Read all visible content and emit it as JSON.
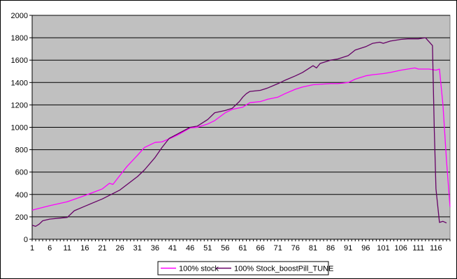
{
  "chart_data": {
    "type": "line",
    "title": "",
    "xlabel": "",
    "ylabel": "",
    "xlim": [
      1,
      120
    ],
    "ylim": [
      0,
      2000
    ],
    "y_ticks": [
      0,
      200,
      400,
      600,
      800,
      1000,
      1200,
      1400,
      1600,
      1800,
      2000
    ],
    "x_tick_labels": [
      "1",
      "6",
      "11",
      "16",
      "21",
      "26",
      "31",
      "36",
      "41",
      "46",
      "51",
      "56",
      "61",
      "66",
      "71",
      "76",
      "81",
      "86",
      "91",
      "96",
      "101",
      "106",
      "111",
      "116"
    ],
    "grid": "horizontal",
    "plot_background": "#c0c0c0",
    "legend_position": "bottom",
    "series": [
      {
        "name": "100% stock",
        "color": "#ff00ff",
        "points": [
          [
            1,
            260
          ],
          [
            6,
            300
          ],
          [
            11,
            335
          ],
          [
            16,
            390
          ],
          [
            21,
            450
          ],
          [
            23,
            500
          ],
          [
            24,
            490
          ],
          [
            26,
            570
          ],
          [
            28,
            650
          ],
          [
            31,
            750
          ],
          [
            33,
            820
          ],
          [
            36,
            865
          ],
          [
            38,
            870
          ],
          [
            41,
            910
          ],
          [
            43,
            940
          ],
          [
            46,
            995
          ],
          [
            48,
            1000
          ],
          [
            51,
            1030
          ],
          [
            53,
            1060
          ],
          [
            56,
            1130
          ],
          [
            58,
            1160
          ],
          [
            61,
            1180
          ],
          [
            63,
            1220
          ],
          [
            66,
            1230
          ],
          [
            68,
            1250
          ],
          [
            71,
            1270
          ],
          [
            73,
            1300
          ],
          [
            76,
            1340
          ],
          [
            78,
            1360
          ],
          [
            81,
            1380
          ],
          [
            86,
            1390
          ],
          [
            88,
            1390
          ],
          [
            91,
            1400
          ],
          [
            93,
            1430
          ],
          [
            96,
            1460
          ],
          [
            98,
            1470
          ],
          [
            101,
            1480
          ],
          [
            103,
            1490
          ],
          [
            106,
            1510
          ],
          [
            108,
            1520
          ],
          [
            110,
            1530
          ],
          [
            111,
            1520
          ],
          [
            114,
            1520
          ],
          [
            116,
            1510
          ],
          [
            117,
            1520
          ],
          [
            118,
            1200
          ],
          [
            119,
            700
          ],
          [
            120,
            290
          ]
        ]
      },
      {
        "name": "100% Stock_boostPill_TUNE",
        "color": "#660066",
        "points": [
          [
            1,
            125
          ],
          [
            2,
            115
          ],
          [
            3,
            135
          ],
          [
            4,
            165
          ],
          [
            6,
            180
          ],
          [
            11,
            195
          ],
          [
            13,
            255
          ],
          [
            16,
            295
          ],
          [
            21,
            360
          ],
          [
            26,
            440
          ],
          [
            31,
            560
          ],
          [
            33,
            620
          ],
          [
            36,
            730
          ],
          [
            38,
            820
          ],
          [
            40,
            900
          ],
          [
            43,
            950
          ],
          [
            46,
            1000
          ],
          [
            48,
            1010
          ],
          [
            51,
            1070
          ],
          [
            53,
            1130
          ],
          [
            56,
            1150
          ],
          [
            58,
            1170
          ],
          [
            59,
            1200
          ],
          [
            60,
            1230
          ],
          [
            61,
            1270
          ],
          [
            62,
            1300
          ],
          [
            63,
            1320
          ],
          [
            66,
            1330
          ],
          [
            68,
            1350
          ],
          [
            71,
            1390
          ],
          [
            73,
            1420
          ],
          [
            76,
            1460
          ],
          [
            78,
            1490
          ],
          [
            80,
            1530
          ],
          [
            81,
            1550
          ],
          [
            82,
            1530
          ],
          [
            83,
            1570
          ],
          [
            86,
            1600
          ],
          [
            88,
            1610
          ],
          [
            91,
            1640
          ],
          [
            93,
            1690
          ],
          [
            96,
            1720
          ],
          [
            98,
            1750
          ],
          [
            100,
            1760
          ],
          [
            101,
            1750
          ],
          [
            103,
            1770
          ],
          [
            106,
            1785
          ],
          [
            108,
            1790
          ],
          [
            111,
            1790
          ],
          [
            113,
            1800
          ],
          [
            115,
            1730
          ],
          [
            115.5,
            1000
          ],
          [
            116,
            450
          ],
          [
            117,
            150
          ],
          [
            118,
            160
          ],
          [
            119,
            145
          ]
        ]
      }
    ]
  }
}
